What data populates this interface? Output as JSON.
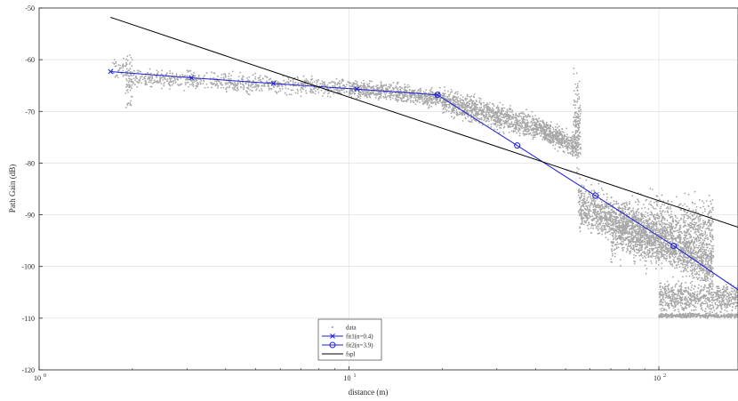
{
  "chart_data": {
    "type": "scatter",
    "title": "",
    "xlabel": "distance (m)",
    "ylabel": "Path Gain (dB)",
    "x_scale": "log",
    "xlim": [
      1,
      180
    ],
    "ylim": [
      -120,
      -50
    ],
    "xticks": [
      1,
      10,
      100
    ],
    "xtick_labels": [
      "10",
      "10",
      "10"
    ],
    "xtick_exponents": [
      "0",
      "1",
      "2"
    ],
    "yticks": [
      -120,
      -110,
      -100,
      -90,
      -80,
      -70,
      -60,
      -50
    ],
    "ytick_labels": [
      "-120",
      "-110",
      "-100",
      "-90",
      "-80",
      "-70",
      "-60",
      "-50"
    ],
    "grid": true,
    "legend_position": "bottom-center",
    "colors": {
      "data": "#a6a6a6",
      "fit1": "#1f1fd6",
      "fit2": "#1f1fd6",
      "fspl": "#000000",
      "grid": "#dcdcdc",
      "axis": "#262626"
    },
    "series": [
      {
        "name": "data",
        "kind": "scatter",
        "segments": [
          {
            "x_range": [
              1.7,
              1.95
            ],
            "y_center": -62,
            "y_spread": 3
          },
          {
            "x_range": [
              1.9,
              2.0
            ],
            "y_center": -64,
            "y_spread": 7
          },
          {
            "x_range": [
              2.0,
              10
            ],
            "y_start": -63.5,
            "y_end": -65.5,
            "y_spread": 2.5
          },
          {
            "x_range": [
              10,
              20
            ],
            "y_start": -65.5,
            "y_end": -67.5,
            "y_spread": 2.5
          },
          {
            "x_range": [
              20,
              40
            ],
            "y_start": -68,
            "y_end": -73,
            "y_spread": 3.5
          },
          {
            "x_range": [
              40,
              55
            ],
            "y_start": -73,
            "y_end": -77,
            "y_spread": 3
          },
          {
            "x_range": [
              53,
              56
            ],
            "y_center": -72,
            "y_spread": 12
          },
          {
            "x_range": [
              55,
              150
            ],
            "y_start": -88,
            "y_end": -100,
            "y_spread": 6
          },
          {
            "x_range": [
              70,
              150
            ],
            "y_center": -93,
            "y_spread": 9
          },
          {
            "x_range": [
              100,
              180
            ],
            "y_center": -106,
            "y_spread": 4
          },
          {
            "x_range": [
              100,
              180
            ],
            "y_center": -109.5,
            "y_spread": 0.6
          }
        ]
      },
      {
        "name": "fit1(n=0.4)",
        "kind": "line",
        "marker": "x",
        "x": [
          1.7,
          3.1,
          5.7,
          10.6,
          19.3
        ],
        "y": [
          -62.3,
          -63.5,
          -64.6,
          -65.7,
          -66.8
        ]
      },
      {
        "name": "fit2(n=3.9)",
        "kind": "line",
        "marker": "o",
        "x": [
          19.3,
          34.9,
          62.4,
          111.6,
          180
        ],
        "y": [
          -66.8,
          -76.6,
          -86.3,
          -96.0,
          -104.5
        ]
      },
      {
        "name": "fspl",
        "kind": "line",
        "marker": "none",
        "x": [
          1.7,
          180
        ],
        "y": [
          -51.8,
          -92.4
        ]
      }
    ]
  }
}
